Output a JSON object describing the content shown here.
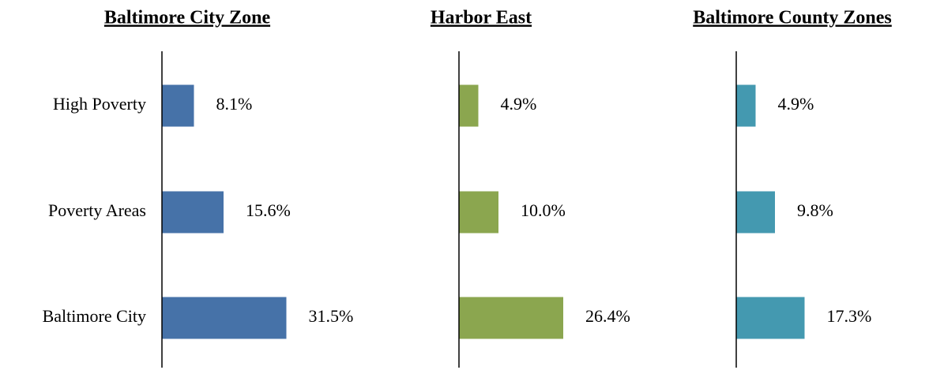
{
  "chart_data": [
    {
      "type": "bar",
      "title": "Baltimore City Zone",
      "categories": [
        "High Poverty",
        "Poverty Areas",
        "Baltimore City"
      ],
      "values": [
        8.1,
        15.6,
        31.5
      ],
      "value_labels": [
        "8.1%",
        "15.6%",
        "31.5%"
      ],
      "color": "#4672a8",
      "xlim": [
        0,
        40
      ]
    },
    {
      "type": "bar",
      "title": "Harbor East",
      "categories": [
        null,
        null,
        null
      ],
      "values": [
        4.9,
        10.0,
        26.4
      ],
      "value_labels": [
        "4.9%",
        "10.0%",
        "26.4%"
      ],
      "color": "#8ba64f",
      "xlim": [
        0,
        40
      ]
    },
    {
      "type": "bar",
      "title": "Baltimore County Zones",
      "categories": [
        null,
        null,
        null
      ],
      "values": [
        4.9,
        9.8,
        17.3
      ],
      "value_labels": [
        "4.9%",
        "9.8%",
        "17.3%"
      ],
      "color": "#4499b0",
      "xlim": [
        0,
        40
      ]
    }
  ]
}
